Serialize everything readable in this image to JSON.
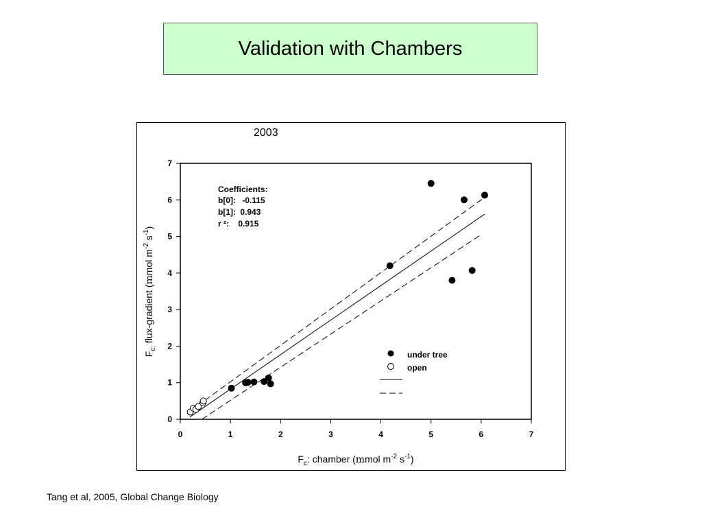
{
  "slide": {
    "title": "Validation with Chambers",
    "citation": "Tang et al, 2005, Global Change Biology"
  },
  "chart_data": {
    "type": "scatter",
    "title": "2003",
    "xlabel": {
      "main": "F",
      "sub": "c",
      "rest": ": chamber (",
      "mu": "m",
      "unit": "mol m",
      "exp1": "-2",
      "mid": " s",
      "exp2": "-1",
      "close": ")"
    },
    "ylabel": {
      "main": "F",
      "sub": "c:",
      "rest": " flux-gradient (",
      "mu": "m",
      "unit": "mol m",
      "exp1": "-2",
      "mid": " s",
      "exp2": "-1",
      "close": ")"
    },
    "xlim": [
      0,
      7
    ],
    "ylim": [
      0,
      7
    ],
    "xticks": [
      0,
      1,
      2,
      3,
      4,
      5,
      6,
      7
    ],
    "yticks": [
      0,
      1,
      2,
      3,
      4,
      5,
      6,
      7
    ],
    "coefficients": {
      "heading": "Coefficients:",
      "b0_label": "b[0]:",
      "b0": "-0.115",
      "b1_label": "b[1]:",
      "b1": "0.943",
      "r2_label": "r ²:",
      "r2": "0.915"
    },
    "series": [
      {
        "name": "under tree",
        "marker": "filled-circle",
        "x": [
          1.02,
          1.3,
          1.35,
          1.47,
          1.67,
          1.76,
          1.8,
          4.18,
          5.0,
          5.42,
          5.66,
          5.82,
          6.07
        ],
        "y": [
          0.85,
          1.0,
          1.01,
          1.02,
          1.03,
          1.13,
          0.97,
          4.2,
          6.45,
          3.8,
          6.0,
          4.07,
          6.13
        ]
      },
      {
        "name": "open",
        "marker": "open-circle",
        "x": [
          0.2,
          0.26,
          0.31,
          0.36,
          0.45,
          0.46
        ],
        "y": [
          0.2,
          0.3,
          0.27,
          0.35,
          0.45,
          0.5
        ]
      }
    ],
    "fit_line": {
      "style": "solid",
      "x": [
        0.19,
        6.07
      ],
      "y": [
        0.06,
        5.61
      ]
    },
    "band_upper": {
      "style": "dashed",
      "x": [
        0.18,
        6.07
      ],
      "y": [
        0.21,
        6.07
      ]
    },
    "band_lower": {
      "style": "dashed",
      "x": [
        0.43,
        6.0
      ],
      "y": [
        0.0,
        5.05
      ]
    },
    "legend_position": "lower-right",
    "grid": false
  }
}
